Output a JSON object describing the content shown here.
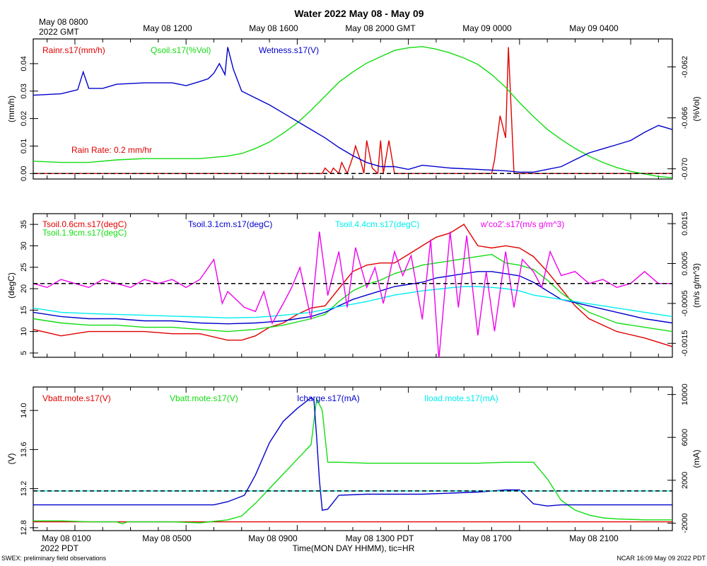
{
  "title": "Water 2022 May 08 - May 09",
  "top_axis": {
    "first_label_line1": "May 08 0800",
    "first_label_line2": "2022 GMT",
    "labels": [
      "May 08 1200",
      "May 08 1600",
      "May 08 2000 GMT",
      "May 09 0000",
      "May 09 0400"
    ]
  },
  "bottom_axis": {
    "labels": [
      "May 08 0100",
      "May 08 0500",
      "May 08 0900",
      "May 08 1300 PDT",
      "May 08 1700",
      "May 08 2100"
    ],
    "year_label": "2022 PDT",
    "xlabel": "Time(MON DAY HHMM), tic=HR"
  },
  "footer": {
    "left": "SWEX: preliminary field observations",
    "right": "NCAR 16:09 May 09 2022 PDT"
  },
  "colors": {
    "red": "#e00000",
    "green": "#11dd11",
    "blue": "#0000cc",
    "cyan": "#00eeee",
    "magenta": "#ee00ee"
  },
  "chart_data": [
    {
      "type": "line",
      "panel": "rain-soil-moisture",
      "x_range_hours": [
        0,
        23
      ],
      "x_note": "hours after May 08 0000 PDT; plot spans ~0030 to ~2330 PDT",
      "ylabel_left": "(mm/h)",
      "ylabel_right": "(%Vol)",
      "ylim_left": [
        -0.002,
        0.049
      ],
      "ylim_right": [
        -0.0708,
        -0.0598
      ],
      "yticks_left": [
        "0.00",
        "0.01",
        "0.02",
        "0.03",
        "0.04"
      ],
      "yticks_right": [
        "-0.062",
        "-0.066",
        "-0.070"
      ],
      "annotation": "Rain Rate: 0.2 mm/hr",
      "series": [
        {
          "name": "Rainr.s17(mm/h)",
          "color": "red",
          "axis": "left",
          "x": [
            0,
            10.4,
            10.5,
            10.7,
            10.8,
            11.0,
            11.1,
            11.3,
            11.5,
            11.6,
            11.8,
            11.9,
            12.0,
            12.2,
            12.4,
            12.5,
            12.6,
            12.8,
            13.0,
            13.1,
            13.3,
            13.5,
            16.5,
            16.6,
            16.8,
            17.0,
            17.1,
            17.3,
            17.5,
            23
          ],
          "values": [
            0,
            0,
            0.002,
            0,
            0.002,
            0,
            0.004,
            0,
            0.006,
            0.01,
            0.004,
            0,
            0.012,
            0.002,
            0,
            0.012,
            0,
            0.012,
            0,
            0,
            0,
            0,
            0,
            0.005,
            0.021,
            0.013,
            0.046,
            0,
            0,
            0
          ]
        },
        {
          "name": "Qsoil.s17(%Vol)",
          "color": "green",
          "axis": "right",
          "x": [
            0,
            1,
            2,
            3,
            4,
            5,
            6,
            7,
            7.5,
            8,
            8.5,
            9,
            9.5,
            10,
            10.5,
            11,
            11.5,
            12,
            12.5,
            13,
            13.5,
            14,
            14.5,
            15,
            15.5,
            16,
            16.5,
            17,
            17.5,
            18,
            18.5,
            19,
            19.5,
            20,
            20.5,
            21,
            21.5,
            22,
            22.5,
            23
          ],
          "values": [
            -0.0694,
            -0.0695,
            -0.0695,
            -0.0693,
            -0.0692,
            -0.0692,
            -0.0692,
            -0.069,
            -0.0688,
            -0.0684,
            -0.0679,
            -0.0672,
            -0.0664,
            -0.0654,
            -0.0643,
            -0.0632,
            -0.0624,
            -0.0617,
            -0.0612,
            -0.0607,
            -0.0605,
            -0.0604,
            -0.0606,
            -0.0609,
            -0.0613,
            -0.0618,
            -0.0626,
            -0.0636,
            -0.0648,
            -0.0659,
            -0.0669,
            -0.0677,
            -0.0684,
            -0.069,
            -0.0695,
            -0.0699,
            -0.0702,
            -0.0704,
            -0.0706,
            -0.0707
          ]
        },
        {
          "name": "Wetness.s17(V)",
          "color": "blue",
          "axis": "left",
          "x": [
            0,
            1,
            1.6,
            1.8,
            2,
            2.5,
            3,
            4,
            5,
            5.5,
            6,
            6.3,
            6.5,
            6.7,
            6.9,
            7,
            7.2,
            7.5,
            8,
            8.5,
            9,
            9.5,
            10,
            10.5,
            11,
            11.5,
            12,
            12.5,
            13,
            13.5,
            14,
            15,
            16,
            17,
            17.5,
            18,
            18.5,
            19,
            19.5,
            20,
            20.5,
            21,
            21.5,
            22,
            22.5,
            23
          ],
          "values": [
            0.0285,
            0.029,
            0.0305,
            0.037,
            0.031,
            0.031,
            0.0325,
            0.033,
            0.033,
            0.032,
            0.0335,
            0.0345,
            0.0365,
            0.04,
            0.036,
            0.046,
            0.038,
            0.03,
            0.0275,
            0.025,
            0.022,
            0.019,
            0.016,
            0.013,
            0.0095,
            0.0065,
            0.004,
            0.0025,
            0.0025,
            0.0015,
            0.003,
            0.002,
            0.0015,
            0.001,
            0.0005,
            0.0005,
            0.0015,
            0.0025,
            0.005,
            0.0075,
            0.009,
            0.0105,
            0.012,
            0.015,
            0.0175,
            0.016
          ]
        },
        {
          "name": "reference",
          "color": "black",
          "style": "dashed",
          "axis": "left",
          "x": [
            0,
            23
          ],
          "values": [
            0,
            0
          ]
        }
      ]
    },
    {
      "type": "line",
      "panel": "soil-temperature-flux",
      "x_range_hours": [
        0,
        23
      ],
      "ylabel_left": "(degC)",
      "ylabel_right": "(m/s g/m^3)",
      "ylim_left": [
        4,
        37.5
      ],
      "ylim_right": [
        -0.00185,
        0.00175
      ],
      "yticks_left": [
        "5",
        "10",
        "15",
        "20",
        "25",
        "30",
        "35"
      ],
      "yticks_right": [
        "0.0015",
        "0.0005",
        "-0.0005",
        "-0.0015"
      ],
      "series": [
        {
          "name": "Tsoil.0.6cm.s17(degC)",
          "color": "red",
          "axis": "left",
          "x": [
            0,
            1,
            2,
            3,
            4,
            5,
            6,
            7,
            7.5,
            8,
            8.5,
            9,
            9.5,
            10,
            10.5,
            11,
            11.5,
            12,
            12.5,
            13,
            13.5,
            14,
            14.5,
            15,
            15.5,
            16,
            16.5,
            17,
            17.5,
            18,
            18.5,
            19,
            19.5,
            20,
            21,
            22,
            23
          ],
          "values": [
            10.5,
            9,
            10,
            10,
            10,
            9.5,
            9.5,
            8,
            8,
            9,
            11,
            12,
            14,
            15.5,
            16,
            20,
            24,
            25.5,
            26,
            26,
            28,
            30,
            32,
            33,
            35,
            30,
            29.5,
            30,
            29.5,
            27.5,
            24,
            20,
            16,
            13,
            10,
            8.5,
            6.5
          ]
        },
        {
          "name": "Tsoil.1.9cm.s17(degC)",
          "color": "green",
          "axis": "left",
          "x": [
            0,
            1,
            2,
            3,
            4,
            5,
            6,
            7,
            8,
            9,
            10,
            10.5,
            11,
            11.5,
            12,
            12.5,
            13,
            13.5,
            14,
            14.5,
            15,
            15.5,
            16,
            16.5,
            17,
            17.5,
            18,
            18.5,
            19,
            20,
            21,
            22,
            23
          ],
          "values": [
            13,
            12,
            11.5,
            11.5,
            11,
            11,
            10.5,
            10,
            10.5,
            11.5,
            13,
            14,
            17,
            19.5,
            21,
            22,
            23.5,
            24.5,
            25.5,
            26,
            26.5,
            27,
            27.5,
            28,
            26,
            25.5,
            24.5,
            22,
            19,
            14.5,
            12,
            11,
            10
          ]
        },
        {
          "name": "Tsoil.3.1cm.s17(degC)",
          "color": "blue",
          "axis": "left",
          "x": [
            0,
            1,
            2,
            3,
            4,
            5,
            6,
            7,
            8,
            9,
            10,
            10.5,
            11,
            11.5,
            12,
            12.5,
            13,
            13.5,
            14,
            14.5,
            15,
            15.5,
            16,
            16.5,
            17,
            17.5,
            18,
            18.5,
            19,
            20,
            21,
            22,
            23
          ],
          "values": [
            14.5,
            13.5,
            13,
            13,
            12.5,
            12.5,
            12,
            11.8,
            12,
            12.5,
            13.5,
            14.5,
            16,
            17.5,
            18.5,
            19.5,
            20.5,
            21,
            21.5,
            22.5,
            23,
            23.5,
            24,
            24,
            23.5,
            23,
            21.5,
            19.5,
            17.5,
            16,
            14.5,
            13,
            12
          ]
        },
        {
          "name": "Tsoil.4.4cm.s17(degC)",
          "color": "cyan",
          "axis": "left",
          "x": [
            0,
            1,
            2,
            3,
            4,
            5,
            6,
            7,
            8,
            9,
            10,
            11,
            12,
            13,
            14,
            15,
            15.5,
            16,
            16.5,
            17,
            17.5,
            18,
            19,
            20,
            21,
            22,
            23
          ],
          "values": [
            15.5,
            14.5,
            14.2,
            14,
            13.8,
            13.6,
            13.4,
            13.2,
            13.3,
            13.8,
            14.5,
            15.8,
            17,
            18.5,
            19.5,
            20.2,
            20.5,
            20.5,
            20.3,
            20,
            19.5,
            18.5,
            17.5,
            16.5,
            15.5,
            14.5,
            13.5
          ]
        },
        {
          "name": "w'co2'.s17(m/s g/m^3)",
          "color": "magenta",
          "axis": "right",
          "x": [
            0,
            0.5,
            1,
            1.5,
            2,
            2.5,
            3,
            3.5,
            4,
            4.5,
            5,
            5.5,
            6,
            6.5,
            6.8,
            7,
            7.3,
            7.6,
            8,
            8.3,
            8.6,
            9,
            9.3,
            9.6,
            10,
            10.3,
            10.6,
            11,
            11.3,
            11.6,
            12,
            12.3,
            12.6,
            13,
            13.3,
            13.6,
            14,
            14.3,
            14.6,
            15,
            15.3,
            15.6,
            16,
            16.3,
            16.6,
            17,
            17.3,
            17.6,
            18,
            18.3,
            18.6,
            19,
            19.5,
            20,
            20.5,
            21,
            21.5,
            22,
            22.5,
            23
          ],
          "values": [
            0,
            -0.0001,
            0.0001,
            0,
            -0.0001,
            0.0001,
            0,
            -0.0001,
            0.0001,
            0,
            0.0001,
            -0.0001,
            0.0001,
            0.0006,
            -0.0005,
            -0.0002,
            -0.0004,
            -0.0006,
            -0.0007,
            -0.0002,
            -0.001,
            -0.0005,
            -0.0001,
            0.0004,
            -0.0009,
            0.0013,
            -0.0003,
            0.0008,
            -0.0006,
            0.0009,
            -0.0001,
            0.0004,
            -0.0005,
            0.0008,
            0.0002,
            0.0007,
            -0.0009,
            0.0011,
            -0.0019,
            0.0013,
            -0.0006,
            0.0012,
            -0.0013,
            0.0003,
            -0.0012,
            0.0008,
            -0.0006,
            0.0006,
            0.0003,
            -0.0001,
            0.0008,
            0.0002,
            0.0003,
            0,
            0.0001,
            -0.0001,
            0,
            0.0003,
            0,
            0
          ]
        },
        {
          "name": "reference",
          "color": "black",
          "style": "dashed",
          "axis": "right",
          "x": [
            0,
            23
          ],
          "values": [
            0,
            0
          ]
        }
      ]
    },
    {
      "type": "line",
      "panel": "battery-power",
      "x_range_hours": [
        0,
        23
      ],
      "ylabel_left": "(V)",
      "ylabel_right": "(mA)",
      "ylim_left": [
        12.77,
        14.24
      ],
      "ylim_right": [
        -2700,
        10700
      ],
      "yticks_left": [
        "12.8",
        "13.2",
        "13.6",
        "14.0"
      ],
      "yticks_right": [
        "-2000",
        "2000",
        "6000",
        "10000"
      ],
      "series": [
        {
          "name": "Vbatt.mote.s17(V)",
          "color": "red",
          "axis": "left",
          "x": [
            0,
            23
          ],
          "values": [
            12.86,
            12.86
          ]
        },
        {
          "name": "Vbatt.mote.s17(V)",
          "color": "green",
          "axis": "left",
          "x": [
            0,
            1,
            2,
            3,
            3.2,
            3.4,
            4,
            5,
            6,
            7,
            7.5,
            8,
            8.5,
            9,
            9.5,
            10,
            10.2,
            10.4,
            10.6,
            11,
            12,
            13,
            14,
            15,
            16,
            17,
            17.5,
            18,
            18.5,
            19,
            19.5,
            20,
            20.5,
            21,
            22,
            23
          ],
          "values": [
            12.87,
            12.87,
            12.86,
            12.86,
            12.84,
            12.86,
            12.86,
            12.86,
            12.85,
            12.88,
            12.92,
            13.05,
            13.2,
            13.35,
            13.5,
            13.65,
            14.12,
            14.0,
            13.47,
            13.47,
            13.46,
            13.46,
            13.46,
            13.46,
            13.46,
            13.47,
            13.47,
            13.47,
            13.3,
            13.08,
            12.98,
            12.93,
            12.9,
            12.89,
            12.88,
            12.88
          ]
        },
        {
          "name": "Icharge.s17(mA)",
          "color": "blue",
          "axis": "right",
          "x": [
            0,
            1,
            2,
            3,
            4,
            5,
            6,
            6.5,
            7,
            7.3,
            7.6,
            8,
            8.5,
            9,
            9.5,
            10,
            10.1,
            10.2,
            10.3,
            10.4,
            10.6,
            11,
            12,
            13,
            14,
            15,
            16,
            17,
            17.5,
            18,
            18.5,
            19,
            20,
            21,
            22,
            23
          ],
          "values": [
            -300,
            -300,
            -300,
            -300,
            -300,
            -300,
            -300,
            -300,
            0,
            300,
            600,
            2500,
            5500,
            7500,
            8700,
            9700,
            9500,
            6000,
            2000,
            -800,
            -700,
            600,
            700,
            700,
            700,
            800,
            900,
            1100,
            1100,
            -200,
            -400,
            -300,
            -300,
            -300,
            -300,
            -300
          ]
        },
        {
          "name": "Iload.mote.s17(mA)",
          "color": "cyan",
          "axis": "right",
          "x": [
            0,
            23
          ],
          "values": [
            1000,
            1000
          ]
        },
        {
          "name": "reference",
          "color": "black",
          "style": "dashed",
          "axis": "right",
          "x": [
            0,
            23
          ],
          "values": [
            1000,
            1000
          ]
        }
      ]
    }
  ]
}
